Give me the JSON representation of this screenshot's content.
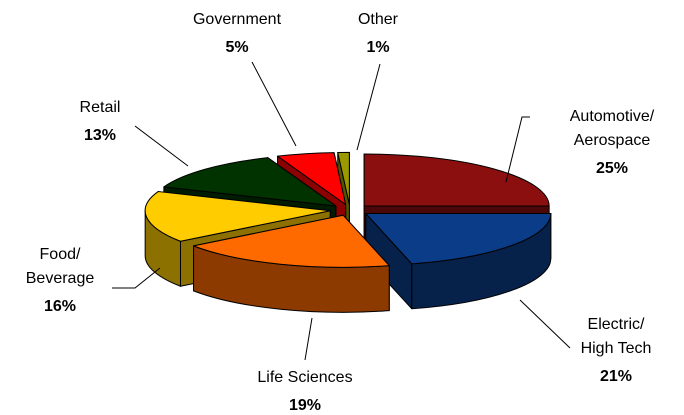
{
  "chart_data": {
    "type": "pie3d",
    "categories": [
      "Automotive/\nAerospace",
      "Electric/\nHigh Tech",
      "Life Sciences",
      "Food/\nBeverage",
      "Retail",
      "Government",
      "Other"
    ],
    "values": [
      25,
      21,
      19,
      16,
      13,
      5,
      1
    ],
    "value_labels": [
      "25%",
      "21%",
      "19%",
      "16%",
      "13%",
      "5%",
      "1%"
    ],
    "colors": [
      "#8b0f0f",
      "#0a3c87",
      "#ff6a00",
      "#ffcc00",
      "#003300",
      "#ff0000",
      "#9a9a00"
    ]
  }
}
